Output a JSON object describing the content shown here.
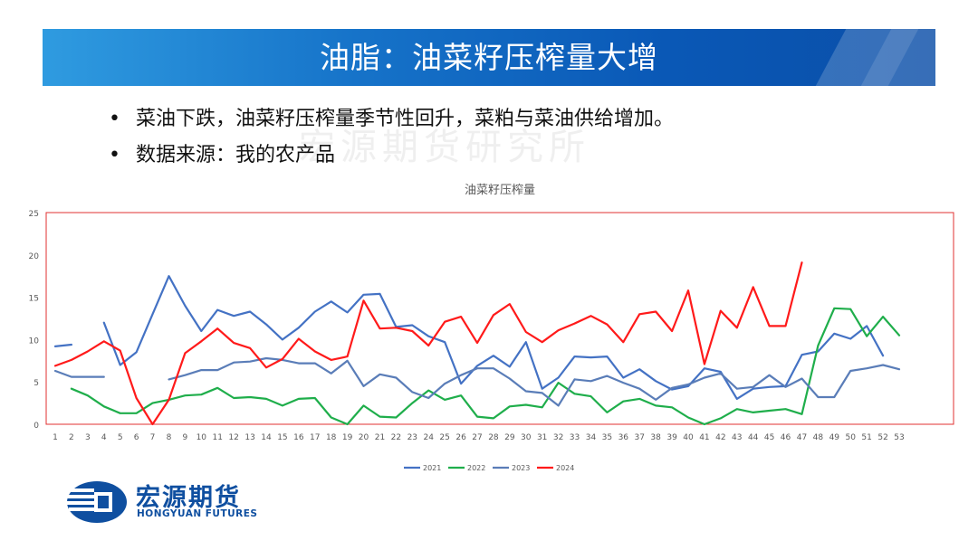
{
  "header": {
    "title": "油脂：油菜籽压榨量大增"
  },
  "bullets": [
    "菜油下跌，油菜籽压榨量季节性回升，菜粕与菜油供给增加。",
    "数据来源：我的农产品"
  ],
  "watermark": "宏源期货研究所",
  "logo": {
    "cn": "宏源期货",
    "en": "HONGYUAN FUTURES"
  },
  "chart_data": {
    "type": "line",
    "title": "油菜籽压榨量",
    "xlabel": "",
    "ylabel": "",
    "x": [
      1,
      2,
      3,
      4,
      5,
      6,
      7,
      8,
      9,
      10,
      11,
      12,
      13,
      14,
      15,
      16,
      17,
      18,
      19,
      20,
      21,
      22,
      23,
      24,
      25,
      26,
      27,
      28,
      29,
      30,
      31,
      32,
      33,
      34,
      35,
      36,
      37,
      38,
      39,
      40,
      41,
      42,
      43,
      44,
      45,
      46,
      47,
      48,
      49,
      50,
      51,
      52,
      53
    ],
    "ylim": [
      0,
      25
    ],
    "yticks": [
      0,
      5,
      10,
      15,
      20,
      25
    ],
    "grid": false,
    "legend": "bottom",
    "series": [
      {
        "name": "2021",
        "color": "#4472c4",
        "values": [
          9.2,
          9.4,
          null,
          12,
          7,
          8.5,
          13,
          17.5,
          14,
          11,
          13.5,
          12.8,
          13.3,
          11.8,
          10,
          11.4,
          13.3,
          14.5,
          13.2,
          15.3,
          15.4,
          11.5,
          11.7,
          10.4,
          9.7,
          4.8,
          6.9,
          8.1,
          6.8,
          9.7,
          4.2,
          5.5,
          8,
          7.9,
          8,
          5.5,
          6.5,
          5.1,
          4.1,
          4.5,
          6.6,
          6.2,
          3,
          4.2,
          4.4,
          4.5,
          8.2,
          8.6,
          10.7,
          10.1,
          11.6,
          8.1,
          null
        ]
      },
      {
        "name": "2022",
        "color": "#1fae4b",
        "values": [
          null,
          4.2,
          3.4,
          2.1,
          1.3,
          1.3,
          2.5,
          2.9,
          3.4,
          3.5,
          4.3,
          3.1,
          3.2,
          3.0,
          2.2,
          3.0,
          3.1,
          0.8,
          0,
          2.2,
          0.9,
          0.8,
          2.5,
          4.0,
          2.9,
          3.4,
          0.9,
          0.7,
          2.1,
          2.3,
          2.0,
          4.9,
          3.6,
          3.3,
          1.4,
          2.7,
          3.0,
          2.2,
          2.0,
          0.8,
          0,
          0.7,
          1.8,
          1.4,
          1.6,
          1.8,
          1.2,
          9.3,
          13.7,
          13.6,
          10.4,
          12.7,
          10.5
        ]
      },
      {
        "name": "2023",
        "color": "#5a7db8",
        "values": [
          6.3,
          5.6,
          5.6,
          5.6,
          null,
          null,
          null,
          5.3,
          5.8,
          6.4,
          6.4,
          7.3,
          7.4,
          7.8,
          7.6,
          7.2,
          7.2,
          6.0,
          7.5,
          4.5,
          5.9,
          5.5,
          3.8,
          3.1,
          4.8,
          5.8,
          6.6,
          6.6,
          5.4,
          3.9,
          3.7,
          2.2,
          5.3,
          5.1,
          5.7,
          4.9,
          4.2,
          2.9,
          4.3,
          4.7,
          5.5,
          6.0,
          4.2,
          4.4,
          5.8,
          4.4,
          5.4,
          3.2,
          3.2,
          6.3,
          6.6,
          7.0,
          6.5
        ]
      },
      {
        "name": "2024",
        "color": "#ff1a1a",
        "values": [
          6.9,
          7.6,
          8.6,
          9.8,
          8.7,
          3.1,
          0,
          2.9,
          8.4,
          9.8,
          11.3,
          9.6,
          9.0,
          6.7,
          7.7,
          10.1,
          8.6,
          7.6,
          8.0,
          14.6,
          11.3,
          11.4,
          11.0,
          9.3,
          12.1,
          12.7,
          9.6,
          12.9,
          14.2,
          10.9,
          9.7,
          11.1,
          11.9,
          12.8,
          11.8,
          9.7,
          13.0,
          13.3,
          11.0,
          15.8,
          7.1,
          13.4,
          11.4,
          16.2,
          11.6,
          11.6,
          19.1,
          null,
          null,
          null,
          null,
          null,
          null
        ]
      }
    ]
  }
}
